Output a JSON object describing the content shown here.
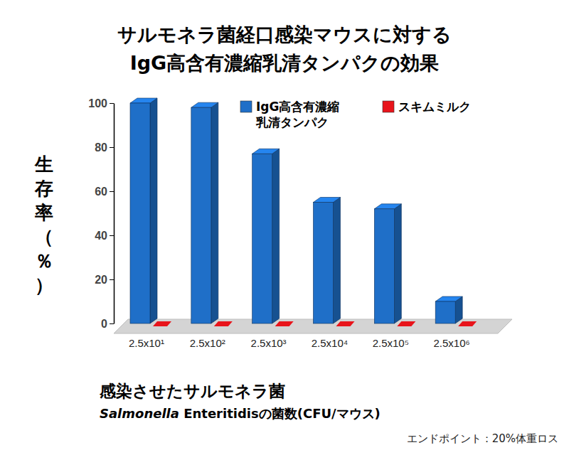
{
  "chart_data": {
    "type": "bar",
    "title": [
      "サルモネラ菌経口感染マウスに対する",
      "IgG高含有濃縮乳清タンパクの効果"
    ],
    "x_label": [
      "感染させたサルモネラ菌",
      "Salmonella Enteritidisの菌数(CFU/マウス)"
    ],
    "y_label": "生存率（％）",
    "annotation": "エンドポイント：20%体重ロス",
    "categories": [
      "2.5x10¹",
      "2.5x10²",
      "2.5x10³",
      "2.5x10⁴",
      "2.5x10⁵",
      "2.5x10⁶"
    ],
    "series": [
      {
        "name": "IgG高含有濃縮乳清タンパク",
        "color": "#1f6fc8",
        "values": [
          100,
          98,
          77,
          55,
          52,
          10
        ]
      },
      {
        "name": "スキムミルク",
        "color": "#e8141b",
        "values": [
          0,
          0,
          0,
          0,
          0,
          0
        ]
      }
    ],
    "ylim": [
      0,
      100
    ],
    "yticks": [
      0,
      20,
      40,
      60,
      80,
      100
    ],
    "grid": false,
    "legend": "top-right"
  }
}
